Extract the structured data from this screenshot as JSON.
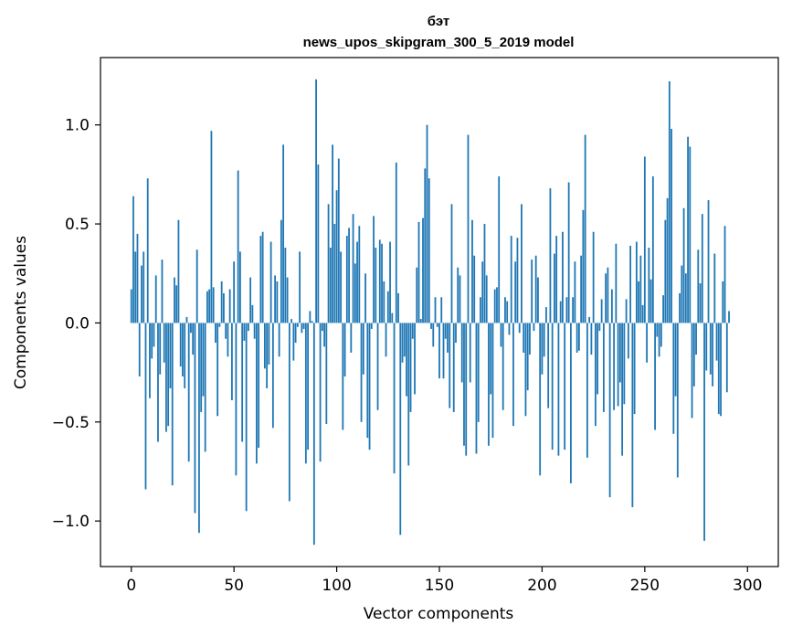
{
  "chart_data": {
    "type": "bar",
    "title": "бэт",
    "subtitle": "news_upos_skipgram_300_5_2019 model",
    "xlabel": "Vector components",
    "ylabel": "Components values",
    "xlim": [
      -15,
      315
    ],
    "ylim": [
      -1.23,
      1.34
    ],
    "xticks": [
      0,
      50,
      100,
      150,
      200,
      250,
      300
    ],
    "xtick_labels": [
      "0",
      "50",
      "100",
      "150",
      "200",
      "250",
      "300"
    ],
    "yticks": [
      -1.0,
      -0.5,
      0.0,
      0.5,
      1.0
    ],
    "ytick_labels": [
      "−1.0",
      "−0.5",
      "0.0",
      "0.5",
      "1.0"
    ],
    "bar_color": "#1f77b4",
    "values": [
      0.17,
      0.64,
      0.36,
      0.45,
      -0.27,
      0.29,
      0.36,
      -0.84,
      0.73,
      -0.38,
      -0.18,
      -0.12,
      0.24,
      -0.6,
      -0.26,
      0.32,
      -0.2,
      -0.55,
      -0.52,
      -0.33,
      -0.82,
      0.23,
      0.19,
      0.52,
      -0.22,
      -0.27,
      -0.33,
      0.03,
      -0.7,
      -0.05,
      -0.16,
      -0.96,
      0.37,
      -1.06,
      -0.45,
      -0.37,
      -0.65,
      0.16,
      0.17,
      0.97,
      0.18,
      -0.1,
      -0.47,
      -0.02,
      0.21,
      0.15,
      -0.08,
      -0.17,
      0.17,
      -0.39,
      0.31,
      -0.77,
      0.77,
      0.36,
      -0.6,
      -0.09,
      -0.95,
      -0.04,
      0.23,
      0.09,
      -0.08,
      -0.71,
      -0.63,
      0.44,
      0.46,
      -0.23,
      -0.33,
      -0.21,
      0.41,
      -0.53,
      0.24,
      0.21,
      -0.17,
      0.52,
      0.9,
      0.38,
      0.23,
      -0.9,
      0.02,
      -0.19,
      -0.1,
      -0.02,
      0.36,
      -0.05,
      -0.03,
      -0.71,
      -0.64,
      0.06,
      0.01,
      -1.12,
      1.23,
      0.8,
      -0.7,
      -0.04,
      -0.12,
      -0.51,
      0.6,
      0.38,
      0.9,
      0.5,
      0.67,
      0.83,
      0.36,
      -0.54,
      -0.27,
      0.44,
      0.48,
      -0.15,
      0.55,
      0.3,
      0.41,
      0.49,
      -0.5,
      -0.26,
      0.25,
      -0.58,
      -0.64,
      -0.03,
      0.54,
      0.38,
      -0.44,
      0.42,
      0.4,
      0.21,
      -0.17,
      0.16,
      0.41,
      0.05,
      -0.76,
      0.81,
      0.15,
      -1.07,
      -0.2,
      -0.17,
      -0.37,
      -0.72,
      -0.45,
      -0.08,
      -0.36,
      0.28,
      0.51,
      0.02,
      0.53,
      0.78,
      1.0,
      0.73,
      -0.03,
      -0.12,
      0.13,
      -0.02,
      -0.28,
      0.13,
      -0.28,
      -0.08,
      -0.15,
      -0.43,
      0.6,
      -0.45,
      -0.1,
      0.28,
      0.24,
      -0.3,
      -0.62,
      -0.67,
      0.95,
      -0.3,
      0.52,
      0.34,
      -0.66,
      -0.5,
      0.13,
      0.31,
      0.5,
      0.24,
      -0.62,
      -0.36,
      -0.58,
      0.17,
      0.18,
      0.74,
      -0.12,
      -0.44,
      0.13,
      0.11,
      -0.06,
      0.44,
      -0.52,
      0.31,
      0.43,
      -0.05,
      0.6,
      -0.15,
      -0.47,
      -0.34,
      -0.16,
      0.32,
      -0.04,
      0.34,
      0.23,
      -0.77,
      -0.26,
      -0.17,
      0.08,
      -0.43,
      0.68,
      -0.64,
      0.35,
      0.44,
      -0.67,
      0.11,
      0.46,
      -0.64,
      0.13,
      0.71,
      -0.81,
      0.13,
      0.31,
      -0.15,
      -0.14,
      0.34,
      0.57,
      0.95,
      -0.68,
      0.03,
      -0.16,
      0.46,
      -0.52,
      -0.36,
      -0.04,
      0.12,
      -0.45,
      0.25,
      0.28,
      -0.88,
      0.17,
      -0.44,
      0.4,
      -0.42,
      -0.3,
      -0.67,
      -0.41,
      0.12,
      -0.18,
      0.39,
      -0.93,
      -0.46,
      0.41,
      0.21,
      0.34,
      0.09,
      0.84,
      -0.2,
      0.38,
      0.22,
      0.74,
      -0.54,
      -0.07,
      -0.17,
      -0.12,
      0.14,
      0.52,
      0.63,
      1.22,
      0.98,
      -0.56,
      -0.37,
      -0.78,
      0.15,
      0.29,
      0.58,
      0.25,
      0.94,
      0.89,
      -0.48,
      -0.32,
      -0.16,
      0.37,
      0.2,
      0.55,
      -1.1,
      -0.24,
      0.62,
      -0.26,
      -0.32,
      0.35,
      -0.19,
      -0.46,
      -0.47,
      0.21,
      0.49,
      -0.35,
      0.06
    ]
  }
}
